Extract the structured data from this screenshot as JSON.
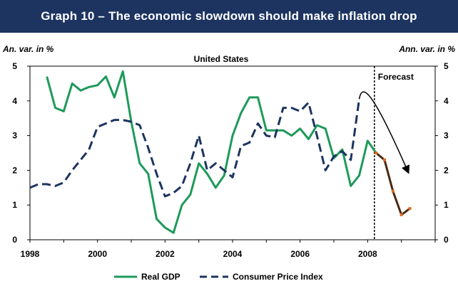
{
  "header": {
    "title": "Graph 10 – The economic slowdown should make inflation drop"
  },
  "axes": {
    "left_unit": "An. var. in %",
    "right_unit": "Ann. var. in %"
  },
  "chart_data": {
    "type": "line",
    "title": "United States",
    "annotation": "Forecast",
    "forecast_start": 2008.2,
    "xlim": [
      1998,
      2010
    ],
    "ylim": [
      0,
      5
    ],
    "x_ticks": [
      1998,
      2000,
      2002,
      2004,
      2006,
      2008
    ],
    "y_ticks": [
      0,
      1,
      2,
      3,
      4,
      5
    ],
    "legend_position": "bottom",
    "series": [
      {
        "name": "Real GDP",
        "color": "#1e9a5a",
        "style": "solid",
        "x": [
          1998.5,
          1998.75,
          1999.0,
          1999.25,
          1999.5,
          1999.75,
          2000.0,
          2000.25,
          2000.5,
          2000.75,
          2001.0,
          2001.25,
          2001.5,
          2001.75,
          2002.0,
          2002.25,
          2002.5,
          2002.75,
          2003.0,
          2003.25,
          2003.5,
          2003.75,
          2004.0,
          2004.25,
          2004.5,
          2004.75,
          2005.0,
          2005.25,
          2005.5,
          2005.75,
          2006.0,
          2006.25,
          2006.5,
          2006.75,
          2007.0,
          2007.25,
          2007.5,
          2007.75,
          2008.0,
          2008.25
        ],
        "values": [
          4.7,
          3.8,
          3.7,
          4.5,
          4.3,
          4.4,
          4.45,
          4.7,
          4.1,
          4.85,
          3.4,
          2.2,
          1.9,
          0.6,
          0.35,
          0.2,
          1.0,
          1.3,
          2.2,
          1.9,
          1.5,
          1.85,
          3.0,
          3.65,
          4.1,
          4.1,
          3.15,
          3.15,
          3.15,
          3.0,
          3.2,
          2.9,
          3.3,
          3.2,
          2.35,
          2.6,
          1.55,
          1.85,
          2.85,
          2.5
        ]
      },
      {
        "name": "Consumer Price Index",
        "color": "#1d3461",
        "style": "dashed",
        "x": [
          1998.0,
          1998.25,
          1998.5,
          1998.75,
          1999.0,
          1999.25,
          1999.5,
          1999.75,
          2000.0,
          2000.25,
          2000.5,
          2000.75,
          2001.0,
          2001.25,
          2001.5,
          2001.75,
          2002.0,
          2002.25,
          2002.5,
          2002.75,
          2003.0,
          2003.25,
          2003.5,
          2003.75,
          2004.0,
          2004.25,
          2004.5,
          2004.75,
          2005.0,
          2005.25,
          2005.5,
          2005.75,
          2006.0,
          2006.25,
          2006.5,
          2006.75,
          2007.0,
          2007.25,
          2007.5,
          2007.75
        ],
        "values": [
          1.5,
          1.6,
          1.6,
          1.55,
          1.65,
          2.0,
          2.3,
          2.6,
          3.25,
          3.35,
          3.45,
          3.45,
          3.4,
          3.3,
          2.65,
          1.9,
          1.25,
          1.35,
          1.55,
          2.2,
          3.0,
          2.0,
          2.2,
          2.0,
          1.8,
          2.7,
          2.8,
          3.35,
          3.0,
          2.95,
          3.8,
          3.8,
          3.7,
          3.95,
          3.0,
          2.0,
          2.4,
          2.55,
          2.3,
          4.05
        ]
      },
      {
        "name": "Forecast",
        "color": "#4a2a12",
        "style": "solid",
        "x": [
          2008.25,
          2008.5,
          2008.75,
          2009.0,
          2009.25
        ],
        "values": [
          2.5,
          2.3,
          1.4,
          0.72,
          0.9
        ]
      }
    ]
  }
}
